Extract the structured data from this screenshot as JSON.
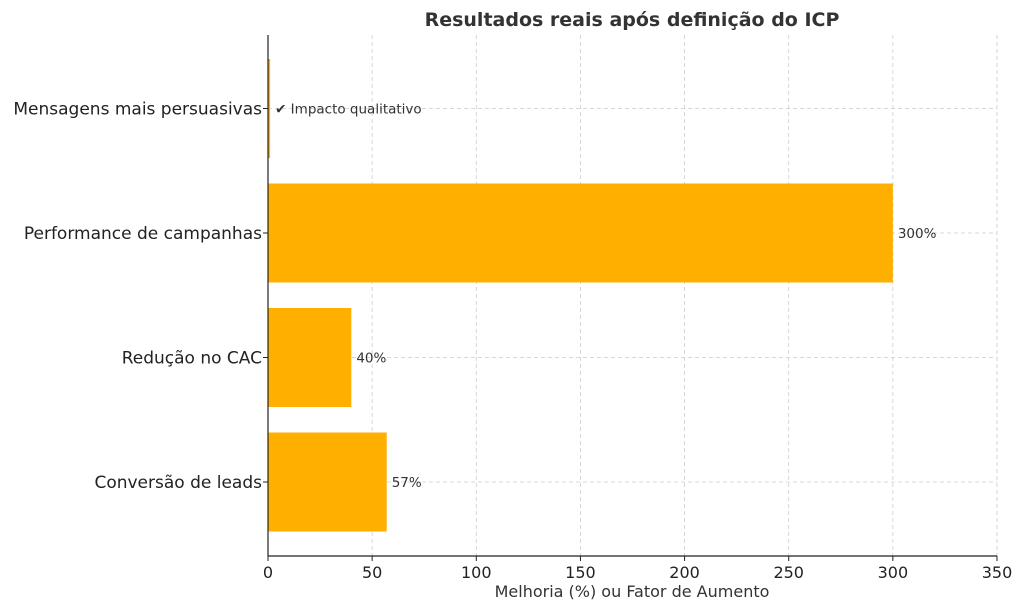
{
  "chart_data": {
    "type": "bar",
    "orientation": "horizontal",
    "title": "Resultados reais após definição do ICP",
    "xlabel": "Melhoria (%) ou Fator de Aumento",
    "ylabel": "",
    "categories": [
      "Conversão de leads",
      "Redução no CAC",
      "Performance de campanhas",
      "Mensagens mais persuasivas"
    ],
    "values": [
      57,
      40,
      300,
      1
    ],
    "data_labels": [
      "57%",
      "40%",
      "300%",
      "✔ Impacto qualitativo"
    ],
    "xlim": [
      0,
      350
    ],
    "xticks": [
      0,
      50,
      100,
      150,
      200,
      250,
      300,
      350
    ],
    "grid": true,
    "bar_color": "#FFAF00"
  }
}
